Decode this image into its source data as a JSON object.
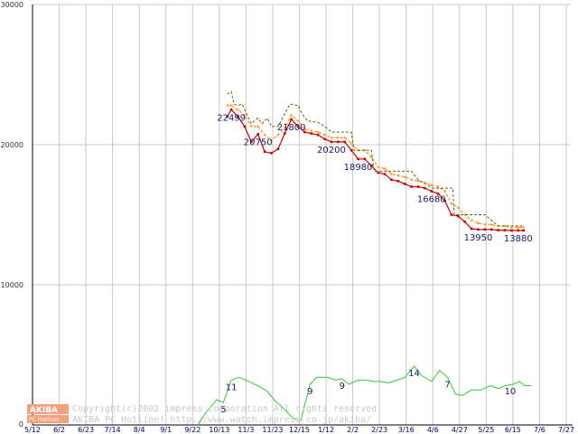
{
  "chart_data": {
    "type": "line",
    "x_tick_labels": [
      "5/12",
      "6/2",
      "6/23",
      "7/14",
      "8/4",
      "9/1",
      "9/22",
      "10/13",
      "11/3",
      "11/23",
      "12/15",
      "1/12",
      "2/2",
      "2/23",
      "3/16",
      "4/6",
      "4/27",
      "5/25",
      "6/15",
      "7/6",
      "7/27"
    ],
    "y_tick_labels": [
      "0",
      "10000",
      "20000",
      "30000"
    ],
    "ylim": [
      0,
      30000
    ],
    "grid": true,
    "series": [
      {
        "color": "#cc0000",
        "points": [
          [
            7.3,
            22000
          ],
          [
            7.45,
            22499
          ],
          [
            7.7,
            22000
          ],
          [
            7.95,
            21300
          ],
          [
            8.2,
            20200
          ],
          [
            8.45,
            20750
          ],
          [
            8.7,
            19500
          ],
          [
            8.95,
            19400
          ],
          [
            9.2,
            19700
          ],
          [
            9.45,
            20800
          ],
          [
            9.7,
            21800
          ],
          [
            9.95,
            21300
          ],
          [
            10.2,
            20900
          ],
          [
            10.45,
            20800
          ],
          [
            10.7,
            20700
          ],
          [
            10.95,
            20400
          ],
          [
            11.2,
            20200
          ],
          [
            11.45,
            20200
          ],
          [
            11.7,
            20200
          ],
          [
            11.95,
            19600
          ],
          [
            12.2,
            18980
          ],
          [
            12.45,
            18980
          ],
          [
            12.7,
            18500
          ],
          [
            12.95,
            18000
          ],
          [
            13.2,
            17900
          ],
          [
            13.45,
            17500
          ],
          [
            13.7,
            17400
          ],
          [
            13.95,
            17200
          ],
          [
            14.2,
            17000
          ],
          [
            14.45,
            17000
          ],
          [
            14.7,
            16900
          ],
          [
            14.95,
            16680
          ],
          [
            15.2,
            16500
          ],
          [
            15.45,
            16000
          ],
          [
            15.7,
            15000
          ],
          [
            15.95,
            14900
          ],
          [
            16.2,
            14500
          ],
          [
            16.45,
            14000
          ],
          [
            16.7,
            13950
          ],
          [
            16.95,
            13950
          ],
          [
            17.2,
            13950
          ],
          [
            17.45,
            13900
          ],
          [
            17.7,
            13900
          ],
          [
            17.95,
            13880
          ],
          [
            18.2,
            13880
          ],
          [
            18.4,
            13880
          ]
        ]
      },
      {
        "color": "#ff9933",
        "points": [
          [
            7.3,
            22800
          ],
          [
            7.45,
            22800
          ],
          [
            7.7,
            22500
          ],
          [
            7.95,
            22100
          ],
          [
            8.2,
            21300
          ],
          [
            8.45,
            21300
          ],
          [
            8.7,
            20700
          ],
          [
            8.95,
            20300
          ],
          [
            9.2,
            20700
          ],
          [
            9.45,
            21200
          ],
          [
            9.7,
            22100
          ],
          [
            9.95,
            21700
          ],
          [
            10.2,
            21100
          ],
          [
            10.45,
            21000
          ],
          [
            10.7,
            20900
          ],
          [
            10.95,
            20700
          ],
          [
            11.2,
            20500
          ],
          [
            11.45,
            20500
          ],
          [
            11.7,
            20500
          ],
          [
            11.95,
            20100
          ],
          [
            12.2,
            19600
          ],
          [
            12.45,
            19600
          ],
          [
            12.7,
            19100
          ],
          [
            12.95,
            18400
          ],
          [
            13.2,
            18300
          ],
          [
            13.45,
            17900
          ],
          [
            13.7,
            17800
          ],
          [
            13.95,
            17700
          ],
          [
            14.2,
            17500
          ],
          [
            14.45,
            17400
          ],
          [
            14.7,
            17300
          ],
          [
            14.95,
            17100
          ],
          [
            15.2,
            17000
          ],
          [
            15.45,
            16700
          ],
          [
            15.7,
            15800
          ],
          [
            15.95,
            15500
          ],
          [
            16.2,
            15000
          ],
          [
            16.45,
            14600
          ],
          [
            16.7,
            14400
          ],
          [
            16.95,
            14300
          ],
          [
            17.2,
            14300
          ],
          [
            17.45,
            14200
          ],
          [
            17.7,
            14200
          ],
          [
            17.95,
            14100
          ],
          [
            18.2,
            14100
          ],
          [
            18.4,
            14100
          ]
        ]
      },
      {
        "color": "#556b00",
        "points": [
          [
            7.3,
            23600
          ],
          [
            7.45,
            23800
          ],
          [
            7.55,
            22900
          ],
          [
            7.7,
            22800
          ],
          [
            7.85,
            22900
          ],
          [
            8.0,
            22300
          ],
          [
            8.2,
            21500
          ],
          [
            8.45,
            21900
          ],
          [
            8.6,
            21500
          ],
          [
            8.8,
            21900
          ],
          [
            8.95,
            21300
          ],
          [
            9.2,
            21300
          ],
          [
            9.45,
            22200
          ],
          [
            9.65,
            22900
          ],
          [
            9.95,
            22800
          ],
          [
            10.1,
            22200
          ],
          [
            10.3,
            21700
          ],
          [
            10.7,
            21600
          ],
          [
            10.95,
            21300
          ],
          [
            11.2,
            20900
          ],
          [
            11.45,
            20900
          ],
          [
            11.95,
            20900
          ],
          [
            12.05,
            19600
          ],
          [
            12.45,
            19600
          ],
          [
            12.7,
            19600
          ],
          [
            12.8,
            18100
          ],
          [
            13.2,
            18100
          ],
          [
            13.45,
            18100
          ],
          [
            14.2,
            18100
          ],
          [
            14.45,
            17500
          ],
          [
            15.0,
            16900
          ],
          [
            15.45,
            16900
          ],
          [
            15.75,
            16900
          ],
          [
            15.8,
            15000
          ],
          [
            16.45,
            15000
          ],
          [
            16.95,
            15000
          ],
          [
            17.45,
            14200
          ],
          [
            18.4,
            14200
          ]
        ]
      },
      {
        "color": "#33cc33",
        "points": [
          [
            6.2,
            0
          ],
          [
            6.5,
            900
          ],
          [
            6.9,
            1800
          ],
          [
            7.15,
            1600
          ],
          [
            7.45,
            3200
          ],
          [
            7.75,
            3400
          ],
          [
            8.1,
            3100
          ],
          [
            8.45,
            2800
          ],
          [
            8.8,
            2400
          ],
          [
            9.1,
            1700
          ],
          [
            9.45,
            1100
          ],
          [
            9.75,
            500
          ],
          [
            10.05,
            300
          ],
          [
            10.4,
            2900
          ],
          [
            10.65,
            3400
          ],
          [
            11.05,
            3400
          ],
          [
            11.35,
            3200
          ],
          [
            11.6,
            3300
          ],
          [
            11.85,
            2900
          ],
          [
            12.2,
            3200
          ],
          [
            12.5,
            3200
          ],
          [
            12.8,
            3100
          ],
          [
            13.05,
            3100
          ],
          [
            13.35,
            3000
          ],
          [
            13.65,
            3200
          ],
          [
            13.95,
            3400
          ],
          [
            14.3,
            4200
          ],
          [
            14.6,
            3500
          ],
          [
            14.95,
            3100
          ],
          [
            15.25,
            3900
          ],
          [
            15.55,
            3400
          ],
          [
            15.85,
            2200
          ],
          [
            16.1,
            2100
          ],
          [
            16.45,
            2500
          ],
          [
            16.8,
            2500
          ],
          [
            17.15,
            2800
          ],
          [
            17.45,
            2600
          ],
          [
            17.7,
            2800
          ],
          [
            18.0,
            2900
          ],
          [
            18.25,
            3100
          ],
          [
            18.45,
            2800
          ],
          [
            18.7,
            2800
          ]
        ]
      }
    ],
    "price_labels": [
      {
        "text": "22499",
        "x": 7.45,
        "y": 22499
      },
      {
        "text": "20750",
        "x": 8.45,
        "y": 20750
      },
      {
        "text": "21800",
        "x": 9.7,
        "y": 21800
      },
      {
        "text": "20200",
        "x": 11.2,
        "y": 20200
      },
      {
        "text": "18980",
        "x": 12.2,
        "y": 18980
      },
      {
        "text": "16680",
        "x": 14.95,
        "y": 16680
      },
      {
        "text": "13950",
        "x": 16.7,
        "y": 13950
      },
      {
        "text": "13880",
        "x": 18.2,
        "y": 13880
      }
    ],
    "count_labels": [
      {
        "text": "5",
        "x": 7.15,
        "y": 1600
      },
      {
        "text": "11",
        "x": 7.45,
        "y": 3200
      },
      {
        "text": "9",
        "x": 10.4,
        "y": 2900
      },
      {
        "text": "9",
        "x": 11.6,
        "y": 3300
      },
      {
        "text": "14",
        "x": 14.3,
        "y": 4200
      },
      {
        "text": "7",
        "x": 15.55,
        "y": 3400
      },
      {
        "text": "10",
        "x": 17.9,
        "y": 2900
      }
    ]
  },
  "watermark": {
    "logo_top": "AKIBA",
    "logo_bottom": "PC Hotline!",
    "line1": "Copyright(c)2002 impress corporation All rights reserved.",
    "line2": "AKIBA PC Hotline! http://www.watch.impress.co.jp/akiba/"
  },
  "colors": {
    "grid": "#c8c8c8",
    "axis": "#000000",
    "logo_orange": "#f4a07a"
  }
}
